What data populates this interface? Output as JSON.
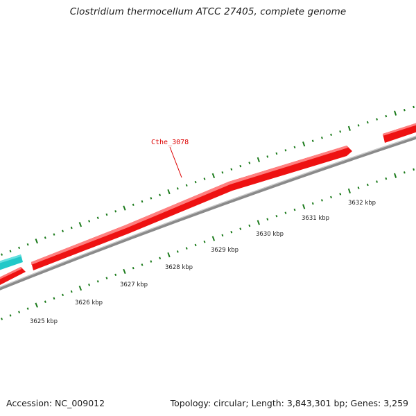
{
  "title": "Clostridium thermocellum ATCC 27405, complete genome",
  "footer": {
    "accession": "Accession: NC_009012",
    "summary": "Topology: circular; Length: 3,843,301 bp; Genes: 3,259"
  },
  "gene_labels": [
    {
      "id": "Cthe_3078",
      "text": "Cthe_3078"
    }
  ],
  "scale_labels": [
    "3625 kbp",
    "3626 kbp",
    "3627 kbp",
    "3628 kbp",
    "3629 kbp",
    "3630 kbp",
    "3631 kbp",
    "3632 kbp"
  ],
  "colors": {
    "forward_gene": "#ee1111",
    "other_gene": "#22cccc",
    "backbone": "#888888",
    "tick": "#1a7a1a",
    "label": "#dd0000"
  }
}
